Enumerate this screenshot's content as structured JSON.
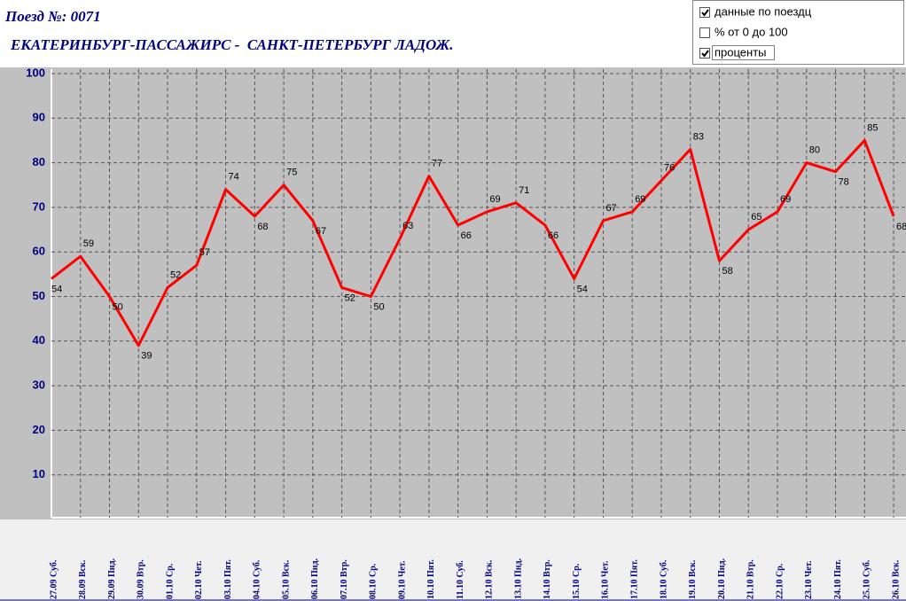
{
  "header": {
    "train": "Поезд №: 0071",
    "route": "ЕКАТЕРИНБУРГ-ПАССАЖИРС -  САНКТ-ПЕТЕРБУРГ ЛАДОЖ."
  },
  "options": [
    {
      "label": "данные по поездц",
      "checked": true
    },
    {
      "label": "% от 0 до 100",
      "checked": false
    },
    {
      "label": "проценты",
      "checked": true
    }
  ],
  "chart_data": {
    "type": "line",
    "color": "#ff0000",
    "grid": true,
    "categories": [
      "27.09 Суб.",
      "28.09 Вск.",
      "29.09 Пнд.",
      "30.09 Втр.",
      "01.10 Ср.",
      "02.10 Чет.",
      "03.10 Пят.",
      "04.10 Суб.",
      "05.10 Вск.",
      "06.10 Пнд.",
      "07.10 Втр.",
      "08.10 Ср.",
      "09.10 Чет.",
      "10.10 Пят.",
      "11.10 Суб.",
      "12.10 Вск.",
      "13.10 Пнд.",
      "14.10 Втр.",
      "15.10 Ср.",
      "16.10 Чет.",
      "17.10 Пят.",
      "18.10 Суб.",
      "19.10 Вск.",
      "20.10 Пнд.",
      "21.10 Втр.",
      "22.10 Ср.",
      "23.10 Чет.",
      "24.10 Пят.",
      "25.10 Суб.",
      "26.10 Вск."
    ],
    "values": [
      54,
      59,
      50,
      39,
      52,
      57,
      74,
      68,
      75,
      67,
      52,
      50,
      63,
      77,
      66,
      69,
      71,
      66,
      54,
      67,
      69,
      76,
      83,
      58,
      65,
      69,
      80,
      78,
      85,
      68
    ],
    "ylim": [
      0,
      100
    ],
    "yticks": [
      10,
      20,
      30,
      40,
      50,
      60,
      70,
      80,
      90,
      100
    ]
  }
}
